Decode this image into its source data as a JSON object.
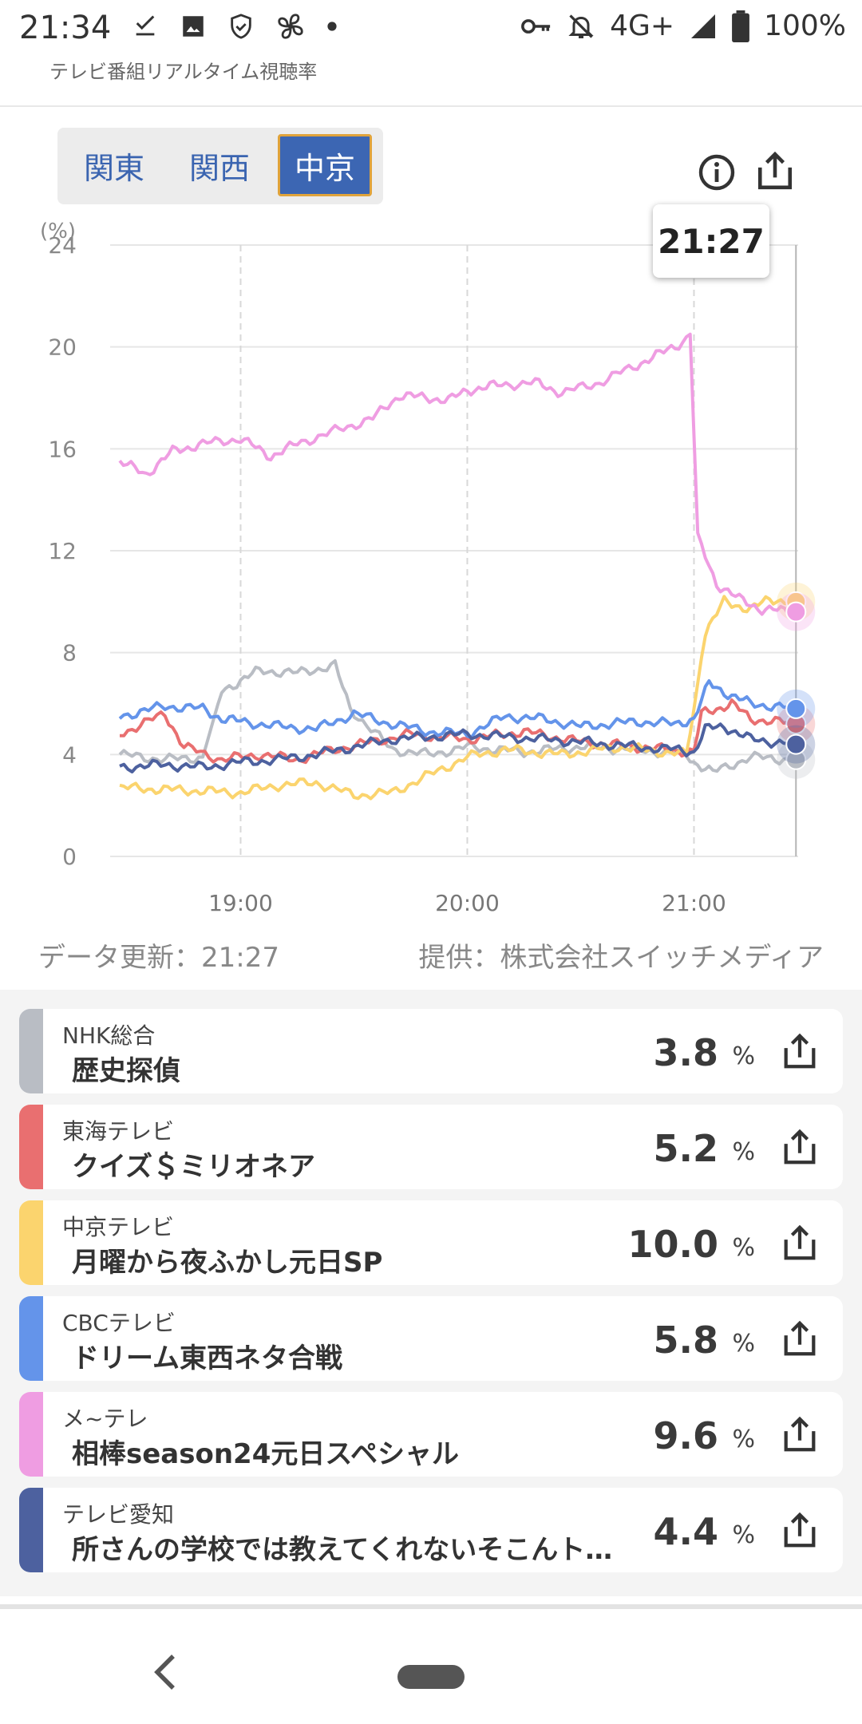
{
  "status_bar": {
    "time": "21:34",
    "network": "4G+",
    "battery": "100%",
    "icons": [
      "download-done-icon",
      "image-icon",
      "shield-icon",
      "fan-icon",
      "dot-icon",
      "key-icon",
      "bell-off-icon",
      "signal-icon",
      "battery-icon"
    ]
  },
  "app_title": "テレビ番組リアルタイム視聴率",
  "region_tabs": [
    {
      "label": "関東",
      "active": false
    },
    {
      "label": "関西",
      "active": false
    },
    {
      "label": "中京",
      "active": true
    }
  ],
  "tooltip_time": "21:27",
  "chart_data": {
    "type": "line",
    "ylabel": "(%)",
    "ylim": [
      0,
      24
    ],
    "yticks": [
      "0",
      "4",
      "8",
      "12",
      "16",
      "20",
      "24"
    ],
    "xticks": [
      "19:00",
      "20:00",
      "21:00"
    ],
    "x_time_range": [
      "18:28",
      "21:27"
    ],
    "grid": true,
    "series": [
      {
        "name": "NHK総合",
        "color": "#b9bdc4",
        "points": [
          [
            "18:28",
            4.0
          ],
          [
            "18:40",
            3.8
          ],
          [
            "18:50",
            3.9
          ],
          [
            "18:55",
            6.5
          ],
          [
            "19:00",
            6.9
          ],
          [
            "19:05",
            7.3
          ],
          [
            "19:15",
            7.2
          ],
          [
            "19:25",
            7.5
          ],
          [
            "19:29",
            5.8
          ],
          [
            "19:40",
            4.2
          ],
          [
            "19:50",
            4.0
          ],
          [
            "20:00",
            4.3
          ],
          [
            "20:15",
            4.1
          ],
          [
            "20:30",
            4.3
          ],
          [
            "20:45",
            4.2
          ],
          [
            "20:58",
            4.0
          ],
          [
            "21:00",
            3.7
          ],
          [
            "21:05",
            3.3
          ],
          [
            "21:15",
            3.9
          ],
          [
            "21:27",
            3.8
          ]
        ]
      },
      {
        "name": "東海テレビ",
        "color": "#e96f70",
        "points": [
          [
            "18:28",
            4.8
          ],
          [
            "18:40",
            5.6
          ],
          [
            "18:45",
            4.3
          ],
          [
            "18:55",
            3.8
          ],
          [
            "19:05",
            4.0
          ],
          [
            "19:15",
            3.8
          ],
          [
            "19:25",
            4.2
          ],
          [
            "19:35",
            4.5
          ],
          [
            "19:45",
            4.8
          ],
          [
            "20:00",
            4.6
          ],
          [
            "20:15",
            4.9
          ],
          [
            "20:30",
            4.5
          ],
          [
            "20:45",
            4.3
          ],
          [
            "21:00",
            4.1
          ],
          [
            "21:02",
            5.6
          ],
          [
            "21:10",
            6.0
          ],
          [
            "21:15",
            5.4
          ],
          [
            "21:27",
            5.2
          ]
        ]
      },
      {
        "name": "中京テレビ",
        "color": "#fbd46e",
        "points": [
          [
            "18:28",
            2.7
          ],
          [
            "18:45",
            2.6
          ],
          [
            "19:00",
            2.5
          ],
          [
            "19:10",
            2.8
          ],
          [
            "19:20",
            2.9
          ],
          [
            "19:30",
            2.4
          ],
          [
            "19:40",
            2.5
          ],
          [
            "19:50",
            3.2
          ],
          [
            "20:00",
            3.9
          ],
          [
            "20:10",
            4.2
          ],
          [
            "20:25",
            4.0
          ],
          [
            "20:40",
            4.3
          ],
          [
            "20:58",
            4.0
          ],
          [
            "21:00",
            5.8
          ],
          [
            "21:03",
            8.8
          ],
          [
            "21:08",
            10.0
          ],
          [
            "21:15",
            9.7
          ],
          [
            "21:20",
            10.1
          ],
          [
            "21:27",
            10.0
          ]
        ]
      },
      {
        "name": "CBCテレビ",
        "color": "#6494ea",
        "points": [
          [
            "18:28",
            5.5
          ],
          [
            "18:40",
            5.9
          ],
          [
            "18:50",
            5.8
          ],
          [
            "18:55",
            5.4
          ],
          [
            "19:00",
            5.3
          ],
          [
            "19:10",
            5.1
          ],
          [
            "19:20",
            5.0
          ],
          [
            "19:30",
            5.6
          ],
          [
            "19:40",
            5.2
          ],
          [
            "19:50",
            4.9
          ],
          [
            "20:00",
            4.8
          ],
          [
            "20:10",
            5.5
          ],
          [
            "20:20",
            5.4
          ],
          [
            "20:30",
            5.1
          ],
          [
            "20:45",
            5.3
          ],
          [
            "20:55",
            5.2
          ],
          [
            "21:00",
            5.4
          ],
          [
            "21:04",
            6.8
          ],
          [
            "21:10",
            6.3
          ],
          [
            "21:15",
            6.0
          ],
          [
            "21:27",
            5.8
          ]
        ]
      },
      {
        "name": "メ~テレ",
        "color": "#ef9de2",
        "points": [
          [
            "18:28",
            15.5
          ],
          [
            "18:35",
            15.0
          ],
          [
            "18:42",
            15.9
          ],
          [
            "18:50",
            16.2
          ],
          [
            "19:00",
            16.4
          ],
          [
            "19:08",
            15.7
          ],
          [
            "19:15",
            16.2
          ],
          [
            "19:25",
            16.7
          ],
          [
            "19:35",
            17.2
          ],
          [
            "19:42",
            18.1
          ],
          [
            "19:50",
            18.0
          ],
          [
            "19:55",
            17.9
          ],
          [
            "20:00",
            18.3
          ],
          [
            "20:08",
            18.5
          ],
          [
            "20:18",
            18.6
          ],
          [
            "20:25",
            18.2
          ],
          [
            "20:35",
            18.6
          ],
          [
            "20:45",
            19.3
          ],
          [
            "20:52",
            19.8
          ],
          [
            "20:57",
            20.2
          ],
          [
            "20:59",
            20.5
          ],
          [
            "21:01",
            12.5
          ],
          [
            "21:06",
            10.7
          ],
          [
            "21:12",
            10.1
          ],
          [
            "21:18",
            9.7
          ],
          [
            "21:27",
            9.6
          ]
        ]
      },
      {
        "name": "テレビ愛知",
        "color": "#4d619f",
        "points": [
          [
            "18:28",
            3.5
          ],
          [
            "18:40",
            3.6
          ],
          [
            "18:50",
            3.5
          ],
          [
            "19:00",
            3.7
          ],
          [
            "19:10",
            3.8
          ],
          [
            "19:20",
            4.0
          ],
          [
            "19:30",
            4.3
          ],
          [
            "19:40",
            4.6
          ],
          [
            "19:50",
            4.7
          ],
          [
            "20:00",
            4.8
          ],
          [
            "20:10",
            4.7
          ],
          [
            "20:20",
            4.6
          ],
          [
            "20:30",
            4.5
          ],
          [
            "20:45",
            4.3
          ],
          [
            "20:55",
            4.2
          ],
          [
            "21:00",
            4.1
          ],
          [
            "21:03",
            5.0
          ],
          [
            "21:08",
            5.1
          ],
          [
            "21:15",
            4.6
          ],
          [
            "21:27",
            4.4
          ]
        ]
      }
    ]
  },
  "footer": {
    "updated": "データ更新：21:27",
    "provider": "提供：株式会社スイッチメディア"
  },
  "channels": [
    {
      "channel": "NHK総合",
      "program": "歴史探偵",
      "rating": "3.8",
      "color": "#b9bdc4"
    },
    {
      "channel": "東海テレビ",
      "program": "クイズ＄ミリオネア",
      "rating": "5.2",
      "color": "#e96f70"
    },
    {
      "channel": "中京テレビ",
      "program": "月曜から夜ふかし元日SP",
      "rating": "10.0",
      "color": "#fbd46e"
    },
    {
      "channel": "CBCテレビ",
      "program": "ドリーム東西ネタ合戦",
      "rating": "5.8",
      "color": "#6494ea"
    },
    {
      "channel": "メ~テレ",
      "program": "相棒season24元日スペシャル",
      "rating": "9.6",
      "color": "#ef9de2"
    },
    {
      "channel": "テレビ愛知",
      "program": "所さんの学校では教えてくれないそこんト…",
      "rating": "4.4",
      "color": "#4d619f"
    }
  ],
  "percent_unit": "%"
}
